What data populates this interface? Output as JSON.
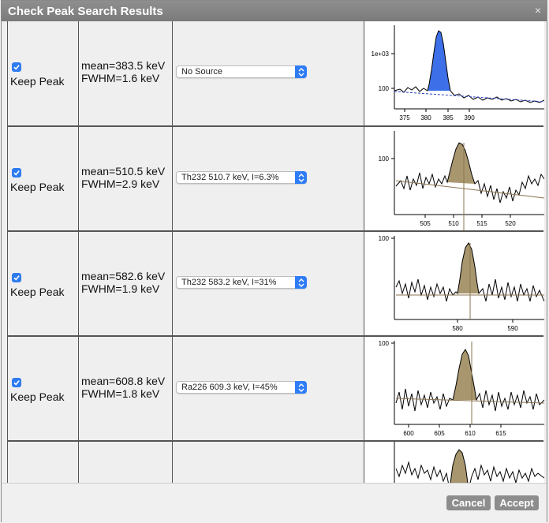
{
  "dialog": {
    "title": "Check Peak Search Results",
    "close_glyph": "×",
    "cancel_label": "Cancel",
    "accept_label": "Accept"
  },
  "rows": [
    {
      "keep_label": "Keep Peak",
      "checked": true,
      "mean": "mean=383.5 keV",
      "fwhm": "FWHM=1.6 keV",
      "source": "No Source",
      "plot": {
        "xticks": [
          "375",
          "380",
          "385",
          "390"
        ],
        "yticks": [
          "1e+03",
          "100"
        ],
        "fill": "#3d6fe8"
      }
    },
    {
      "keep_label": "Keep Peak",
      "checked": true,
      "mean": "mean=510.5 keV",
      "fwhm": "FWHM=2.9 keV",
      "source": "Th232 510.7 keV, I=6.3%",
      "plot": {
        "xticks": [
          "505",
          "510",
          "515",
          "520"
        ],
        "yticks": [
          "100"
        ],
        "fill": "#a8966e"
      }
    },
    {
      "keep_label": "Keep Peak",
      "checked": true,
      "mean": "mean=582.6 keV",
      "fwhm": "FWHM=1.9 keV",
      "source": "Th232 583.2 keV, I=31%",
      "plot": {
        "xticks": [
          "580",
          "590"
        ],
        "yticks": [
          "100"
        ],
        "fill": "#a8966e"
      }
    },
    {
      "keep_label": "Keep Peak",
      "checked": true,
      "mean": "mean=608.8 keV",
      "fwhm": "FWHM=1.8 keV",
      "source": "Ra226 609.3 keV, I=45%",
      "plot": {
        "xticks": [
          "600",
          "605",
          "610",
          "615"
        ],
        "yticks": [
          "100"
        ],
        "fill": "#a8966e"
      }
    }
  ]
}
